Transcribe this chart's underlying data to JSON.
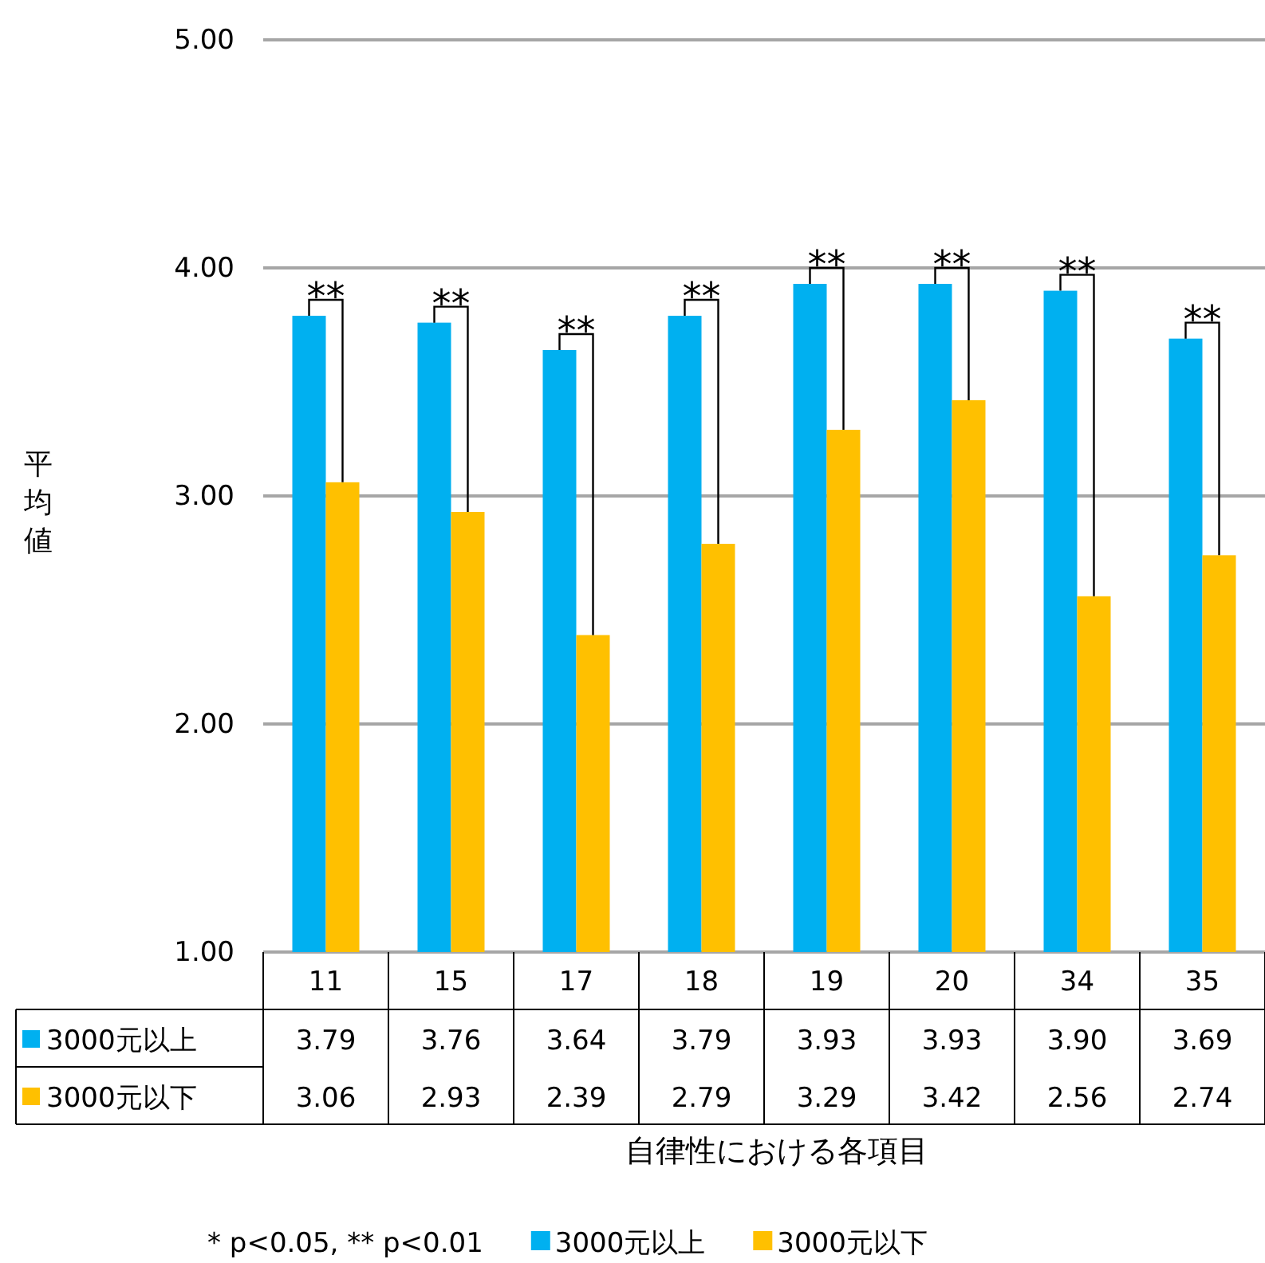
{
  "chart_data": {
    "type": "bar",
    "ylabel": "平均値",
    "xlabel": "自律性における各項目",
    "categories": [
      "11",
      "15",
      "17",
      "18",
      "19",
      "20",
      "34",
      "35"
    ],
    "series": [
      {
        "name": "3000元以上",
        "color": "#00b0f0",
        "values": [
          3.79,
          3.76,
          3.64,
          3.79,
          3.93,
          3.93,
          3.9,
          3.69
        ],
        "value_labels": [
          "3.79",
          "3.76",
          "3.64",
          "3.79",
          "3.93",
          "3.93",
          "3.90",
          "3.69"
        ]
      },
      {
        "name": "3000元以下",
        "color": "#ffc000",
        "values": [
          3.06,
          2.93,
          2.39,
          2.79,
          3.29,
          3.42,
          2.56,
          2.74
        ],
        "value_labels": [
          "3.06",
          "2.93",
          "2.39",
          "2.79",
          "3.29",
          "3.42",
          "2.56",
          "2.74"
        ]
      }
    ],
    "ylim": [
      1,
      5
    ],
    "yticks": [
      {
        "value": 1,
        "label": "1.00"
      },
      {
        "value": 2,
        "label": "2.00"
      },
      {
        "value": 3,
        "label": "3.00"
      },
      {
        "value": 4,
        "label": "4.00"
      },
      {
        "value": 5,
        "label": "5.00"
      }
    ],
    "grid": "y",
    "legend": "bottom",
    "annotations": [
      {
        "text": "**",
        "x": "11",
        "y": 3.79
      },
      {
        "text": "**",
        "x": "15",
        "y": 3.76
      },
      {
        "text": "**",
        "x": "17",
        "y": 3.64
      },
      {
        "text": "**",
        "x": "18",
        "y": 3.79
      },
      {
        "text": "**",
        "x": "19",
        "y": 3.93
      },
      {
        "text": "**",
        "x": "20",
        "y": 3.93
      },
      {
        "text": "**",
        "x": "34",
        "y": 3.9
      },
      {
        "text": "**",
        "x": "35",
        "y": 3.69
      },
      "* p<0.05,  ** p<0.01"
    ]
  }
}
